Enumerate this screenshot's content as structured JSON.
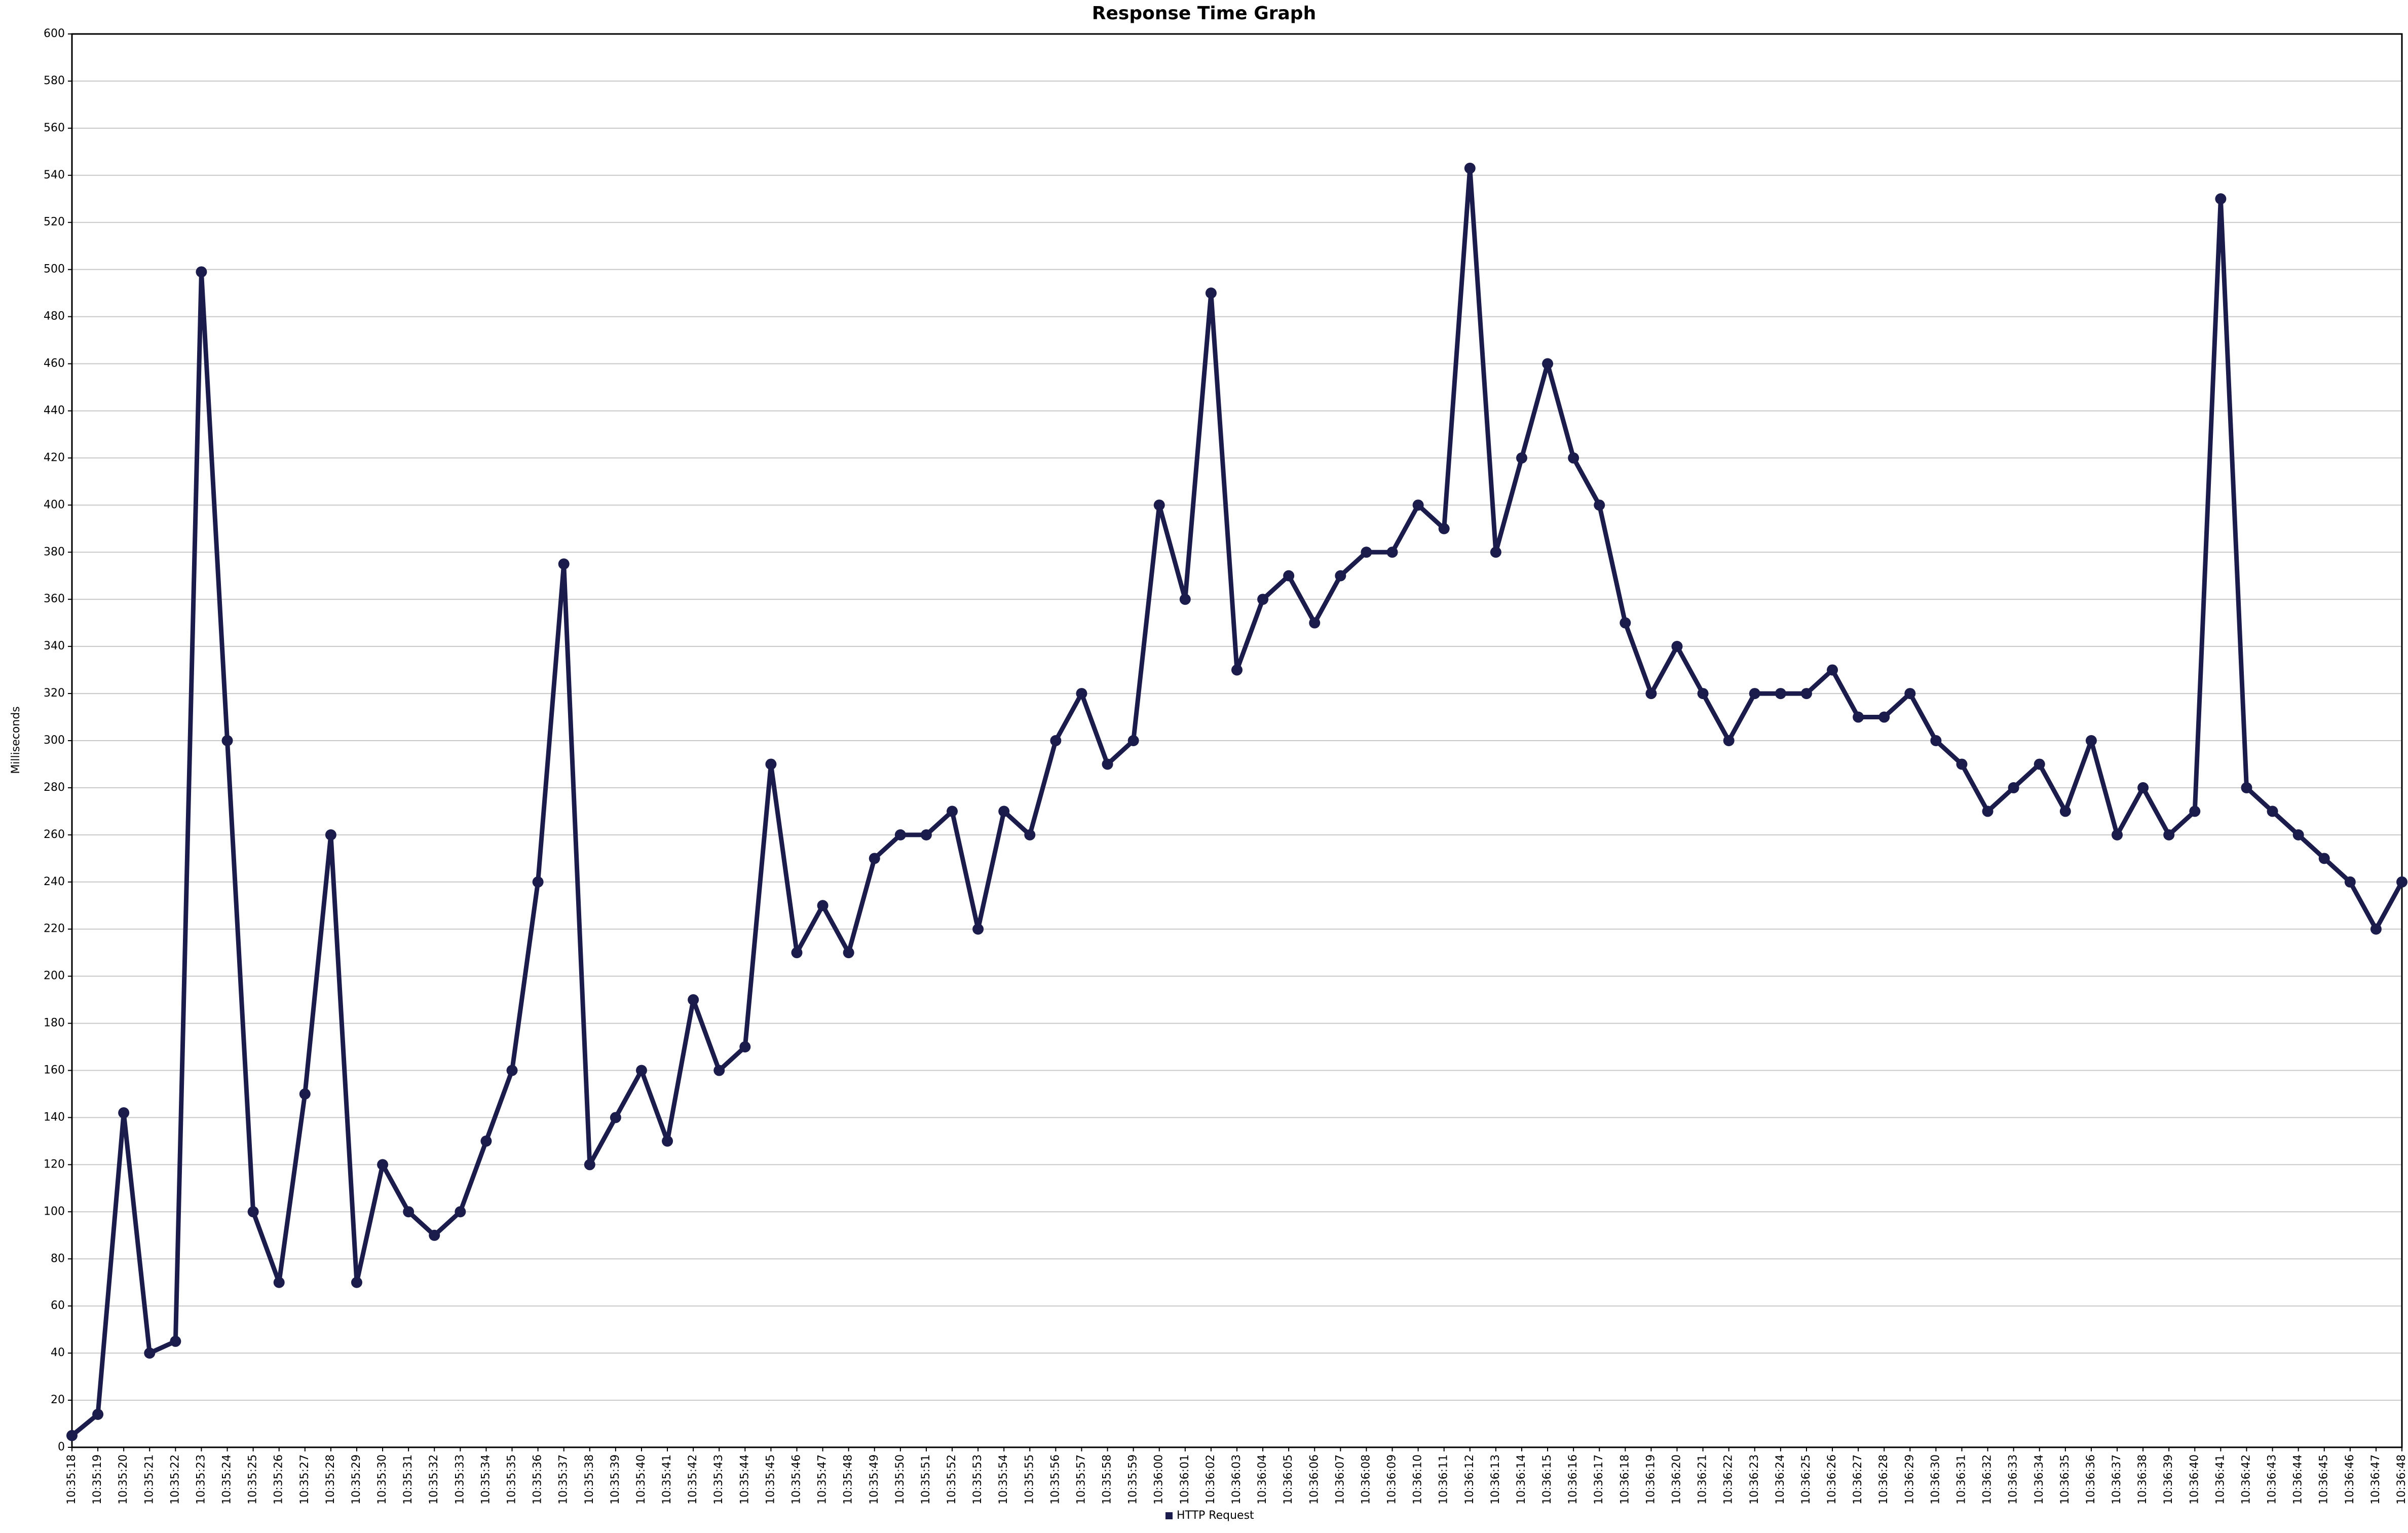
{
  "chart_data": {
    "type": "line",
    "title": "Response Time Graph",
    "ylabel": "Milliseconds",
    "categories": [
      "10:35:18",
      "10:35:19",
      "10:35:20",
      "10:35:21",
      "10:35:22",
      "10:35:23",
      "10:35:24",
      "10:35:25",
      "10:35:26",
      "10:35:27",
      "10:35:28",
      "10:35:29",
      "10:35:30",
      "10:35:31",
      "10:35:32",
      "10:35:33",
      "10:35:34",
      "10:35:35",
      "10:35:36",
      "10:35:37",
      "10:35:38",
      "10:35:39",
      "10:35:40",
      "10:35:41",
      "10:35:42",
      "10:35:43",
      "10:35:44",
      "10:35:45",
      "10:35:46",
      "10:35:47",
      "10:35:48",
      "10:35:49",
      "10:35:50",
      "10:35:51",
      "10:35:52",
      "10:35:53",
      "10:35:54",
      "10:35:55",
      "10:35:56",
      "10:35:57",
      "10:35:58",
      "10:35:59",
      "10:36:00",
      "10:36:01",
      "10:36:02",
      "10:36:03",
      "10:36:04",
      "10:36:05",
      "10:36:06",
      "10:36:07",
      "10:36:08",
      "10:36:09",
      "10:36:10",
      "10:36:11",
      "10:36:12",
      "10:36:13",
      "10:36:14",
      "10:36:15",
      "10:36:16",
      "10:36:17",
      "10:36:18",
      "10:36:19",
      "10:36:20",
      "10:36:21",
      "10:36:22",
      "10:36:23",
      "10:36:24",
      "10:36:25",
      "10:36:26",
      "10:36:27",
      "10:36:28",
      "10:36:29",
      "10:36:30",
      "10:36:31",
      "10:36:32",
      "10:36:33",
      "10:36:34",
      "10:36:35",
      "10:36:36",
      "10:36:37",
      "10:36:38",
      "10:36:39",
      "10:36:40",
      "10:36:41",
      "10:36:42",
      "10:36:43",
      "10:36:44",
      "10:36:45",
      "10:36:46",
      "10:36:47",
      "10:36:48"
    ],
    "series": [
      {
        "name": "HTTP Request",
        "color": "#1c1c4c",
        "values": [
          5,
          14,
          142,
          40,
          45,
          499,
          300,
          100,
          70,
          150,
          260,
          70,
          120,
          100,
          90,
          100,
          130,
          160,
          240,
          375,
          120,
          140,
          160,
          130,
          190,
          160,
          170,
          290,
          210,
          230,
          210,
          250,
          260,
          260,
          270,
          220,
          270,
          260,
          300,
          320,
          290,
          300,
          400,
          360,
          490,
          330,
          360,
          370,
          350,
          370,
          380,
          380,
          400,
          390,
          543,
          380,
          420,
          460,
          420,
          400,
          350,
          320,
          340,
          320,
          300,
          320,
          320,
          320,
          330,
          310,
          310,
          320,
          300,
          290,
          270,
          280,
          290,
          270,
          300,
          260,
          280,
          260,
          270,
          530,
          280,
          270,
          260,
          250,
          240,
          220,
          240
        ]
      }
    ],
    "ylim": [
      0,
      600
    ],
    "yticks": [
      0,
      20,
      40,
      60,
      80,
      100,
      120,
      140,
      160,
      180,
      200,
      220,
      240,
      260,
      280,
      300,
      320,
      340,
      360,
      380,
      400,
      420,
      440,
      460,
      480,
      500,
      520,
      540,
      560,
      580,
      600
    ],
    "grid": true,
    "legend": "bottom"
  }
}
